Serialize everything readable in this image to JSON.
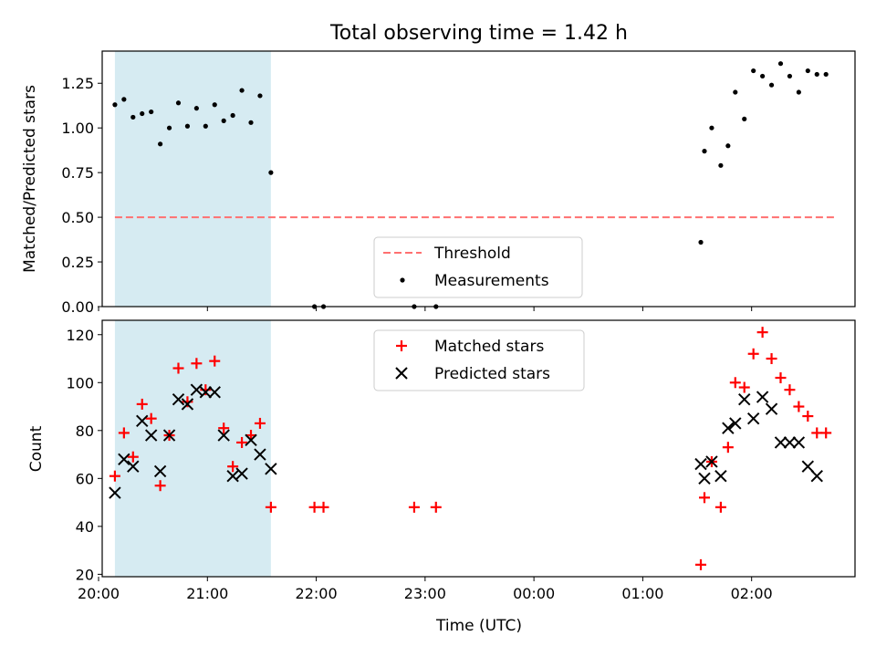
{
  "chart_data": [
    {
      "type": "scatter",
      "title": "Total observing time = 1.42 h",
      "xlabel": "",
      "ylabel": "Matched/Predicted stars",
      "ylim": [
        0,
        1.43
      ],
      "yticks": [
        0.0,
        0.25,
        0.5,
        0.75,
        1.0,
        1.25
      ],
      "ytick_labels": [
        "0.00",
        "0.25",
        "0.50",
        "0.75",
        "1.00",
        "1.25"
      ],
      "xlim": [
        "20:02",
        "02:57"
      ],
      "shaded_region": {
        "x_start": "20:09",
        "x_end": "21:35",
        "color": "#add8e6"
      },
      "threshold": {
        "name": "Threshold",
        "y": 0.5,
        "x_start": "20:09",
        "x_end": "02:46",
        "color": "#ff7070",
        "style": "dashed"
      },
      "legend": {
        "position": "lower center",
        "entries": [
          "Threshold",
          "Measurements"
        ]
      },
      "series": [
        {
          "name": "Measurements",
          "color": "#000000",
          "marker": "dot",
          "x": [
            "20:09",
            "20:14",
            "20:19",
            "20:24",
            "20:29",
            "20:34",
            "20:39",
            "20:44",
            "20:49",
            "20:54",
            "20:59",
            "21:04",
            "21:09",
            "21:14",
            "21:19",
            "21:24",
            "21:29",
            "21:35",
            "21:59",
            "22:04",
            "22:54",
            "23:06",
            "01:32",
            "01:34",
            "01:38",
            "01:43",
            "01:47",
            "01:51",
            "01:56",
            "02:01",
            "02:06",
            "02:11",
            "02:16",
            "02:21",
            "02:26",
            "02:31",
            "02:36",
            "02:41"
          ],
          "y": [
            1.13,
            1.16,
            1.06,
            1.08,
            1.09,
            0.91,
            1.0,
            1.14,
            1.01,
            1.11,
            1.01,
            1.13,
            1.04,
            1.07,
            1.21,
            1.03,
            1.18,
            0.75,
            0.0,
            0.0,
            0.0,
            0.0,
            0.36,
            0.87,
            1.0,
            0.79,
            0.9,
            1.2,
            1.05,
            1.32,
            1.29,
            1.24,
            1.36,
            1.29,
            1.2,
            1.32,
            1.3,
            1.3
          ]
        }
      ]
    },
    {
      "type": "scatter",
      "title": "",
      "xlabel": "Time (UTC)",
      "ylabel": "Count",
      "ylim": [
        19,
        126
      ],
      "yticks": [
        20,
        40,
        60,
        80,
        100,
        120
      ],
      "ytick_labels": [
        "20",
        "40",
        "60",
        "80",
        "100",
        "120"
      ],
      "xlim": [
        "20:02",
        "02:57"
      ],
      "xticks": [
        "20:00",
        "21:00",
        "22:00",
        "23:00",
        "00:00",
        "01:00",
        "02:00"
      ],
      "xtick_labels": [
        "20:00",
        "21:00",
        "22:00",
        "23:00",
        "00:00",
        "01:00",
        "02:00"
      ],
      "shaded_region": {
        "x_start": "20:09",
        "x_end": "21:35",
        "color": "#add8e6"
      },
      "legend": {
        "position": "upper center",
        "entries": [
          "Matched stars",
          "Predicted stars"
        ]
      },
      "series": [
        {
          "name": "Matched stars",
          "color": "#ff0000",
          "marker": "plus",
          "x": [
            "20:09",
            "20:14",
            "20:19",
            "20:24",
            "20:29",
            "20:34",
            "20:39",
            "20:44",
            "20:49",
            "20:54",
            "20:59",
            "21:04",
            "21:09",
            "21:14",
            "21:19",
            "21:24",
            "21:29",
            "21:35",
            "21:59",
            "22:04",
            "22:54",
            "23:06",
            "01:32",
            "01:34",
            "01:38",
            "01:43",
            "01:47",
            "01:51",
            "01:56",
            "02:01",
            "02:06",
            "02:11",
            "02:16",
            "02:21",
            "02:26",
            "02:31",
            "02:36",
            "02:41"
          ],
          "y": [
            61,
            79,
            69,
            91,
            85,
            57,
            78,
            106,
            92,
            108,
            97,
            109,
            81,
            65,
            75,
            78,
            83,
            48,
            48,
            48,
            48,
            48,
            24,
            52,
            67,
            48,
            73,
            100,
            98,
            112,
            121,
            110,
            102,
            97,
            90,
            86,
            79,
            79
          ]
        },
        {
          "name": "Predicted stars",
          "color": "#000000",
          "marker": "x",
          "x": [
            "20:09",
            "20:14",
            "20:19",
            "20:24",
            "20:29",
            "20:34",
            "20:39",
            "20:44",
            "20:49",
            "20:54",
            "20:59",
            "21:04",
            "21:09",
            "21:14",
            "21:19",
            "21:24",
            "21:29",
            "21:35",
            "01:32",
            "01:34",
            "01:38",
            "01:43",
            "01:47",
            "01:51",
            "01:56",
            "02:01",
            "02:06",
            "02:11",
            "02:16",
            "02:21",
            "02:26",
            "02:31",
            "02:36"
          ],
          "y": [
            54,
            68,
            65,
            84,
            78,
            63,
            78,
            93,
            91,
            97,
            96,
            96,
            78,
            61,
            62,
            76,
            70,
            64,
            66,
            60,
            67,
            61,
            81,
            83,
            93,
            85,
            94,
            89,
            75,
            75,
            75,
            65,
            61
          ]
        }
      ]
    }
  ]
}
